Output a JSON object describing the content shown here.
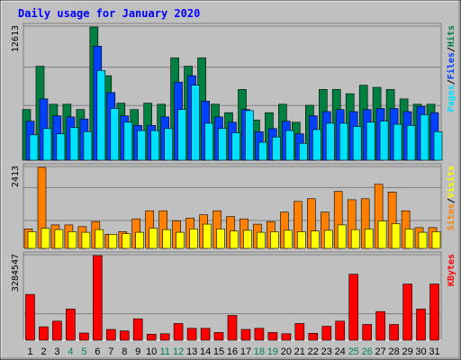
{
  "title": "Daily usage for January 2020",
  "colors": {
    "background": "#c0c0c0",
    "title": "#0000ff",
    "hits": "#008040",
    "files": "#0040ff",
    "pages": "#00e0ff",
    "visits": "#ffff00",
    "sites": "#ff8000",
    "kbytes": "#ff0000",
    "weekend_day_label": "#00805c",
    "weekday_label": "#000000"
  },
  "chart_data": [
    {
      "type": "bar",
      "panel": "top",
      "y_max_label": "12613",
      "ylim": [
        0,
        12613
      ],
      "grid": true,
      "legend_text": [
        {
          "text": "Pages",
          "color": "#00e0ff"
        },
        {
          "text": "/",
          "color": "#000000"
        },
        {
          "text": "Files",
          "color": "#0040ff"
        },
        {
          "text": "/",
          "color": "#000000"
        },
        {
          "text": "Hits",
          "color": "#008040"
        }
      ],
      "categories": [
        "1",
        "2",
        "3",
        "4",
        "5",
        "6",
        "7",
        "8",
        "9",
        "10",
        "11",
        "12",
        "13",
        "14",
        "15",
        "16",
        "17",
        "18",
        "19",
        "20",
        "21",
        "22",
        "23",
        "24",
        "25",
        "26",
        "27",
        "28",
        "29",
        "30",
        "31"
      ],
      "series": [
        {
          "name": "Hits",
          "values": [
            4800,
            8900,
            5300,
            5300,
            4800,
            12613,
            8000,
            5400,
            4800,
            5400,
            5300,
            9700,
            8900,
            9700,
            5300,
            4500,
            6700,
            3800,
            4500,
            5300,
            3600,
            5200,
            6700,
            6700,
            6300,
            7100,
            6900,
            6700,
            5800,
            5300,
            5300
          ]
        },
        {
          "name": "Files",
          "values": [
            3700,
            5800,
            4200,
            4100,
            3900,
            10800,
            6400,
            4200,
            3300,
            3300,
            4100,
            7400,
            8000,
            5600,
            4100,
            3600,
            4800,
            2700,
            3000,
            3700,
            2500,
            4200,
            4600,
            4800,
            4600,
            4800,
            4900,
            4900,
            4600,
            5100,
            4500
          ]
        },
        {
          "name": "Pages",
          "values": [
            2400,
            3000,
            2500,
            3100,
            2700,
            8500,
            4900,
            3600,
            2800,
            2800,
            3000,
            4800,
            7100,
            3500,
            3000,
            2600,
            4700,
            1700,
            2200,
            2800,
            1600,
            2900,
            3500,
            3500,
            3200,
            3600,
            3700,
            3400,
            3300,
            4300,
            2700
          ]
        }
      ]
    },
    {
      "type": "bar",
      "panel": "middle",
      "y_max_label": "2413",
      "ylim": [
        0,
        2413
      ],
      "grid": true,
      "legend_text": [
        {
          "text": "Sites",
          "color": "#ff8000"
        },
        {
          "text": "/",
          "color": "#000000"
        },
        {
          "text": "Visits",
          "color": "#ffff00"
        }
      ],
      "categories": [
        "1",
        "2",
        "3",
        "4",
        "5",
        "6",
        "7",
        "8",
        "9",
        "10",
        "11",
        "12",
        "13",
        "14",
        "15",
        "16",
        "17",
        "18",
        "19",
        "20",
        "21",
        "22",
        "23",
        "24",
        "25",
        "26",
        "27",
        "28",
        "29",
        "30",
        "31"
      ],
      "series": [
        {
          "name": "Sites",
          "values": [
            580,
            2413,
            700,
            700,
            650,
            800,
            420,
            500,
            880,
            1120,
            1120,
            820,
            900,
            1000,
            1120,
            950,
            880,
            720,
            800,
            1080,
            1400,
            1480,
            1080,
            1700,
            1450,
            1480,
            1910,
            1680,
            1120,
            620,
            620
          ]
        },
        {
          "name": "Visits",
          "values": [
            500,
            600,
            560,
            500,
            480,
            560,
            420,
            440,
            480,
            600,
            560,
            480,
            580,
            720,
            580,
            520,
            540,
            480,
            500,
            540,
            500,
            520,
            540,
            700,
            560,
            580,
            820,
            740,
            580,
            480,
            500
          ]
        }
      ]
    },
    {
      "type": "bar",
      "panel": "bottom",
      "y_max_label": "3284547",
      "ylim": [
        0,
        3284547
      ],
      "grid": true,
      "legend_text": [
        {
          "text": "KBytes",
          "color": "#ff0000"
        }
      ],
      "categories": [
        "1",
        "2",
        "3",
        "4",
        "5",
        "6",
        "7",
        "8",
        "9",
        "10",
        "11",
        "12",
        "13",
        "14",
        "15",
        "16",
        "17",
        "18",
        "19",
        "20",
        "21",
        "22",
        "23",
        "24",
        "25",
        "26",
        "27",
        "28",
        "29",
        "30",
        "31"
      ],
      "series": [
        {
          "name": "KBytes",
          "values": [
            1780000,
            520000,
            740000,
            1210000,
            280000,
            3284547,
            420000,
            360000,
            830000,
            230000,
            250000,
            650000,
            460000,
            460000,
            300000,
            960000,
            420000,
            460000,
            300000,
            250000,
            650000,
            270000,
            540000,
            740000,
            2560000,
            610000,
            1110000,
            610000,
            2180000,
            1210000,
            2180000
          ]
        }
      ]
    }
  ],
  "x_axis": {
    "labels": [
      {
        "text": "1",
        "weekend": false
      },
      {
        "text": "2",
        "weekend": false
      },
      {
        "text": "3",
        "weekend": false
      },
      {
        "text": "4",
        "weekend": true
      },
      {
        "text": "5",
        "weekend": true
      },
      {
        "text": "6",
        "weekend": false
      },
      {
        "text": "7",
        "weekend": false
      },
      {
        "text": "8",
        "weekend": false
      },
      {
        "text": "9",
        "weekend": false
      },
      {
        "text": "10",
        "weekend": false
      },
      {
        "text": "11",
        "weekend": true
      },
      {
        "text": "12",
        "weekend": true
      },
      {
        "text": "13",
        "weekend": false
      },
      {
        "text": "14",
        "weekend": false
      },
      {
        "text": "15",
        "weekend": false
      },
      {
        "text": "16",
        "weekend": false
      },
      {
        "text": "17",
        "weekend": false
      },
      {
        "text": "18",
        "weekend": true
      },
      {
        "text": "19",
        "weekend": true
      },
      {
        "text": "20",
        "weekend": false
      },
      {
        "text": "21",
        "weekend": false
      },
      {
        "text": "22",
        "weekend": false
      },
      {
        "text": "23",
        "weekend": false
      },
      {
        "text": "24",
        "weekend": false
      },
      {
        "text": "25",
        "weekend": true
      },
      {
        "text": "26",
        "weekend": true
      },
      {
        "text": "27",
        "weekend": false
      },
      {
        "text": "28",
        "weekend": false
      },
      {
        "text": "29",
        "weekend": false
      },
      {
        "text": "30",
        "weekend": false
      },
      {
        "text": "31",
        "weekend": false
      }
    ]
  }
}
